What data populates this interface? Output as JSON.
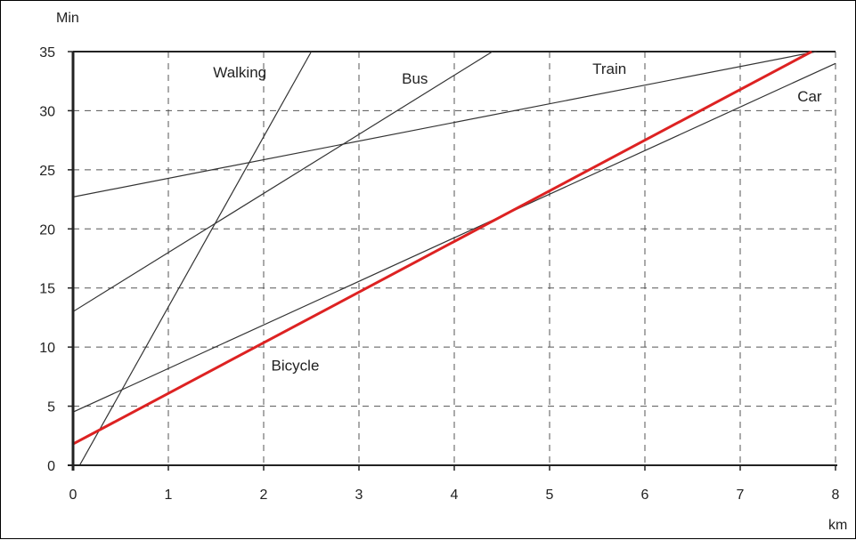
{
  "chart_data": {
    "type": "line",
    "title": "",
    "xlabel": "km",
    "ylabel": "Min",
    "xlim": [
      0,
      8
    ],
    "ylim": [
      0,
      35
    ],
    "x_ticks": [
      "0",
      "1",
      "2",
      "3",
      "4",
      "5",
      "6",
      "7",
      "8"
    ],
    "y_ticks": [
      "0",
      "5",
      "10",
      "15",
      "20",
      "25",
      "30",
      "35"
    ],
    "grid": true,
    "series": [
      {
        "name": "Walking",
        "x": [
          0,
          2.5
        ],
        "y": [
          -1,
          35
        ],
        "color": "#333333"
      },
      {
        "name": "Bus",
        "x": [
          0,
          4.4
        ],
        "y": [
          13,
          35
        ],
        "color": "#333333"
      },
      {
        "name": "Train",
        "x": [
          0,
          7.8
        ],
        "y": [
          22.7,
          35
        ],
        "color": "#333333"
      },
      {
        "name": "Car",
        "x": [
          0,
          8
        ],
        "y": [
          4.5,
          34
        ],
        "color": "#333333"
      },
      {
        "name": "Bicycle",
        "x": [
          0,
          7.75
        ],
        "y": [
          1.8,
          35
        ],
        "color": "#dd2222"
      }
    ]
  }
}
